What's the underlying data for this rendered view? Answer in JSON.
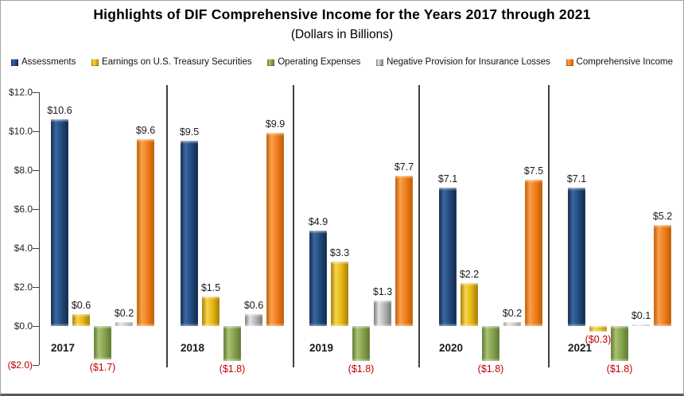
{
  "title": "Highlights of DIF Comprehensive Income for the Years 2017 through 2021",
  "subtitle": "(Dollars in Billions)",
  "chart_data": {
    "type": "bar",
    "categories": [
      "2017",
      "2018",
      "2019",
      "2020",
      "2021"
    ],
    "series": [
      {
        "name": "Assessments",
        "color": "#21497B",
        "color_light": "#3A66A0",
        "color_dark": "#13294A",
        "values": [
          10.6,
          9.5,
          4.9,
          7.1,
          7.1
        ],
        "labels": [
          "$10.6",
          "$9.5",
          "$4.9",
          "$7.1",
          "$7.1"
        ]
      },
      {
        "name": "Earnings on U.S. Treasury Securities",
        "color": "#E6B512",
        "color_light": "#F7D44C",
        "color_dark": "#A37D05",
        "values": [
          0.6,
          1.5,
          3.3,
          2.2,
          -0.3
        ],
        "labels": [
          "$0.6",
          "$1.5",
          "$3.3",
          "$2.2",
          "($0.3)"
        ]
      },
      {
        "name": "Operating Expenses",
        "color": "#85A24D",
        "color_light": "#A9C274",
        "color_dark": "#5E7832",
        "values": [
          -1.7,
          -1.8,
          -1.8,
          -1.8,
          -1.8
        ],
        "labels": [
          "($1.7)",
          "($1.8)",
          "($1.8)",
          "($1.8)",
          "($1.8)"
        ]
      },
      {
        "name": "Negative Provision for Insurance Losses",
        "color": "#B3B3B3",
        "color_light": "#E2E2E2",
        "color_dark": "#787878",
        "values": [
          0.2,
          0.6,
          1.3,
          0.2,
          0.1
        ],
        "labels": [
          "$0.2",
          "$0.6",
          "$1.3",
          "$0.2",
          "$0.1"
        ]
      },
      {
        "name": "Comprehensive Income",
        "color": "#EE7D1C",
        "color_light": "#F9A14A",
        "color_dark": "#BF5D06",
        "values": [
          9.6,
          9.9,
          7.7,
          7.5,
          5.2
        ],
        "labels": [
          "$9.6",
          "$9.9",
          "$7.7",
          "$7.5",
          "$5.2"
        ]
      }
    ],
    "y_axis": {
      "tick_labels": [
        "$12.0",
        "$10.0",
        "$8.0",
        "$6.0",
        "$4.0",
        "$2.0",
        "$0.0",
        "($2.0)"
      ],
      "tick_values": [
        12,
        10,
        8,
        6,
        4,
        2,
        0,
        -2
      ],
      "ylim": [
        -2,
        12
      ]
    },
    "negative_label_color": "#C00000",
    "legend_position": "top",
    "grid": false
  }
}
